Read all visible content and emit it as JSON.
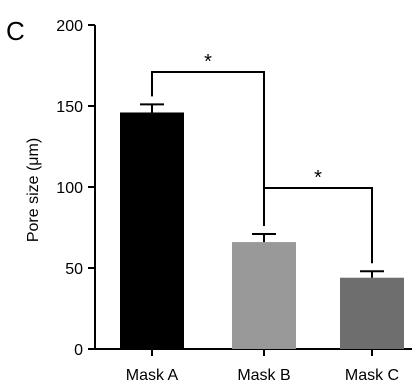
{
  "panel_label": "C",
  "chart_data": {
    "type": "bar",
    "categories": [
      "Mask A",
      "Mask B",
      "Mask C"
    ],
    "values": [
      146,
      66,
      44
    ],
    "errors": [
      5,
      5,
      4
    ],
    "bar_colors": [
      "#000000",
      "#999999",
      "#6e6e6e"
    ],
    "ylabel": "Pore size (μm)",
    "xlabel": "",
    "ylim": [
      0,
      200
    ],
    "yticks": [
      0,
      50,
      100,
      150,
      200
    ],
    "grid": false,
    "significance": [
      {
        "from": "Mask A",
        "to": "Mask B",
        "label": "*"
      },
      {
        "from": "Mask B",
        "to": "Mask C",
        "label": "*"
      }
    ]
  }
}
